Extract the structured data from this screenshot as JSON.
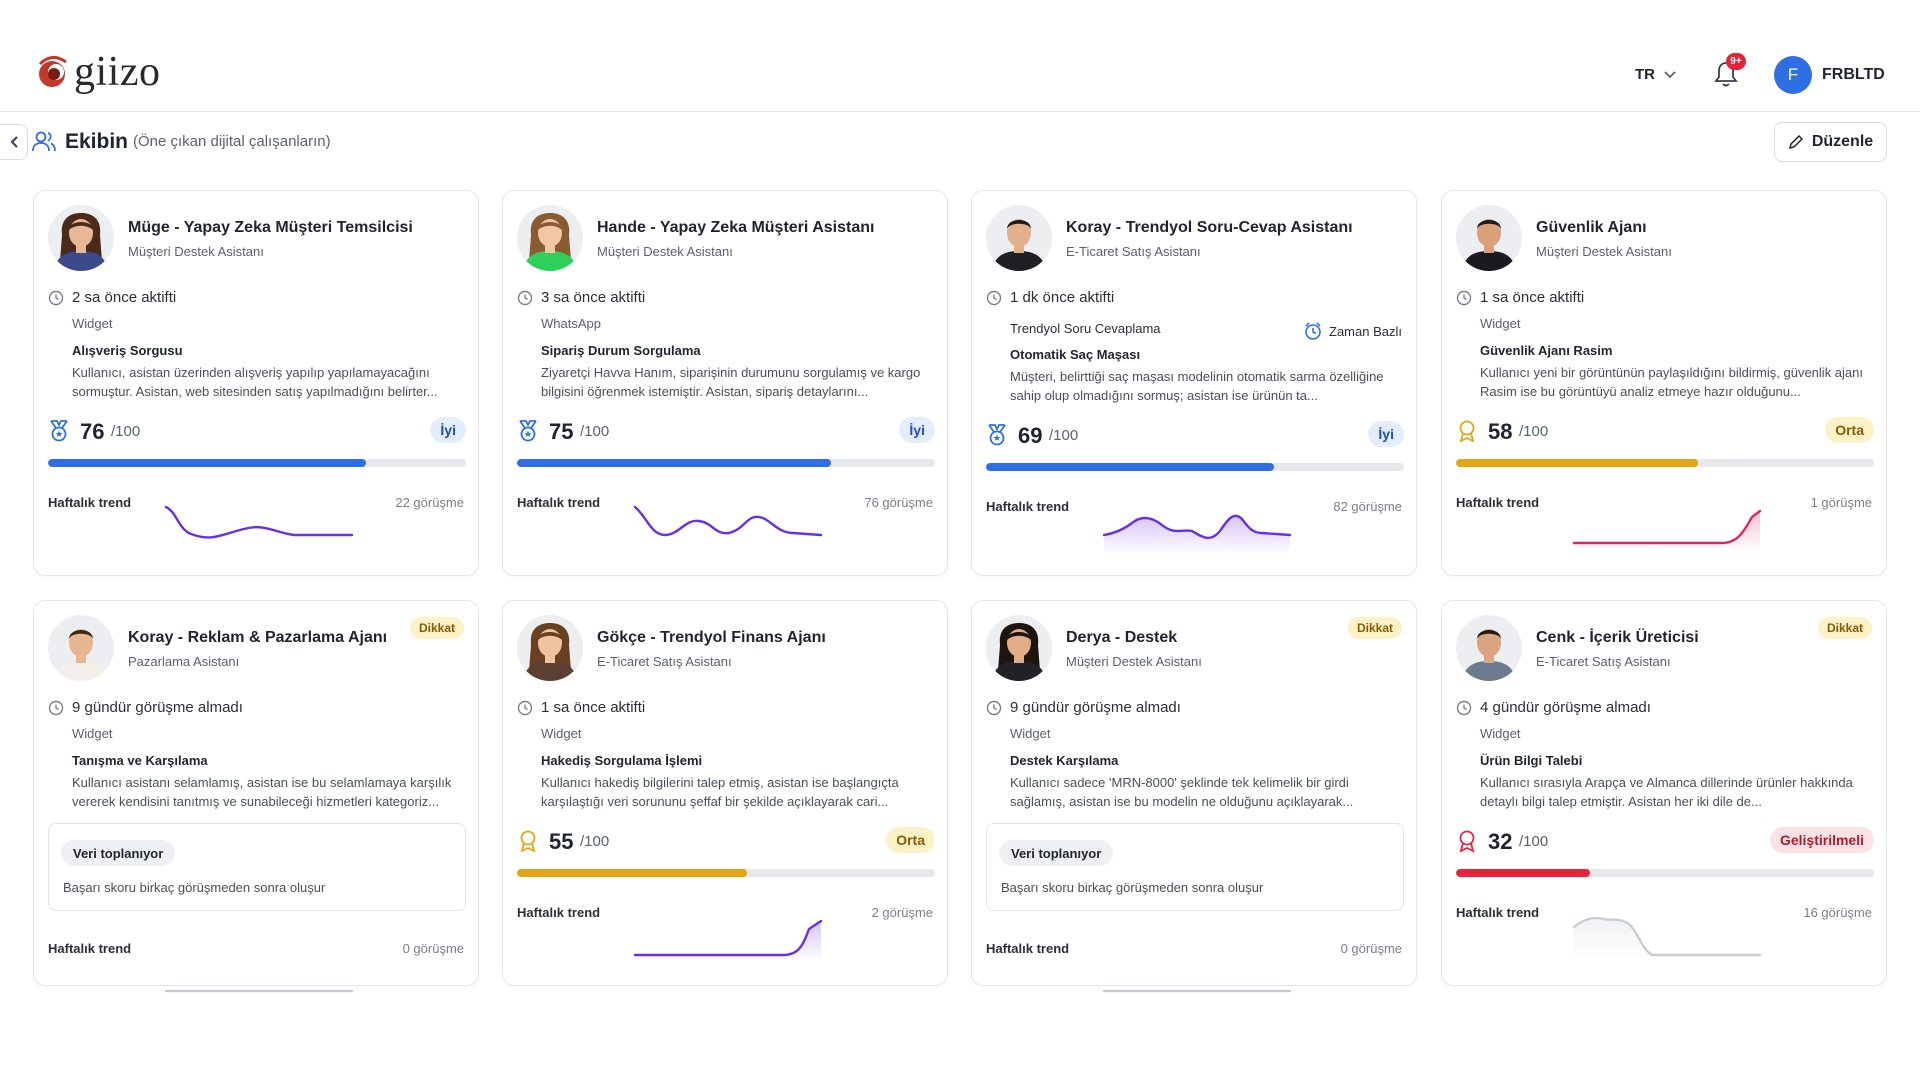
{
  "brand": {
    "logo_text": "giizo"
  },
  "header": {
    "language": "TR",
    "notifications_badge": "9+",
    "user_initial": "F",
    "user_name": "FRBLTD"
  },
  "team": {
    "title": "Ekibin",
    "subtitle": "(Öne çıkan dijital çalışanların)",
    "edit_label": "Düzenle"
  },
  "colors": {
    "blue": "#2f6fe4",
    "amber": "#e3a514",
    "red": "#e5243b",
    "purple": "#6a2ee6",
    "pink": "#e0245e",
    "gray": "#c9ccd2"
  },
  "cards": [
    {
      "name": "Müge - Yapay Zeka Müşteri Temsilcisi",
      "role": "Müşteri Destek Asistanı",
      "tag": "",
      "activity": "2 sa önce aktifti",
      "channel": "Widget",
      "time_tag": "",
      "topic": "Alışveriş Sorgusu",
      "summary": "Kullanıcı, asistan üzerinden alışveriş yapılıp yapılamayacağını sormuştur. Asistan, web sitesinden satış yapılmadığını belirter...",
      "score": "76",
      "score_max": "/100",
      "grade": "İyi",
      "grade_level": "good",
      "score_pct": 76,
      "collecting": false,
      "trend_label": "Haftalık trend",
      "trend_count": "22 görüşme",
      "trend_kind": "purple-wave"
    },
    {
      "name": "Hande - Yapay Zeka Müşteri Asistanı",
      "role": "Müşteri Destek Asistanı",
      "tag": "",
      "activity": "3 sa önce aktifti",
      "channel": "WhatsApp",
      "time_tag": "",
      "topic": "Sipariş Durum Sorgulama",
      "summary": "Ziyaretçi Havva Hanım, siparişinin durumunu sorgulamış ve kargo bilgisini öğrenmek istemiştir. Asistan, sipariş detaylarını...",
      "score": "75",
      "score_max": "/100",
      "grade": "İyi",
      "grade_level": "good",
      "score_pct": 75,
      "collecting": false,
      "trend_label": "Haftalık trend",
      "trend_count": "76 görüşme",
      "trend_kind": "purple-wave2"
    },
    {
      "name": "Koray - Trendyol Soru-Cevap Asistanı",
      "role": "E-Ticaret Satış Asistanı",
      "tag": "",
      "activity": "1 dk önce aktifti",
      "channel": "Trendyol Soru Cevaplama",
      "time_tag": "Zaman Bazlı",
      "topic": "Otomatik Saç Maşası",
      "summary": "Müşteri, belirttiği saç maşası modelinin otomatik sarma özelliğine sahip olup olmadığını sormuş; asistan ise ürünün ta...",
      "score": "69",
      "score_max": "/100",
      "grade": "İyi",
      "grade_level": "good",
      "score_pct": 69,
      "collecting": false,
      "trend_label": "Haftalık trend",
      "trend_count": "82 görüşme",
      "trend_kind": "purple-hills"
    },
    {
      "name": "Güvenlik Ajanı",
      "role": "Müşteri Destek Asistanı",
      "tag": "",
      "activity": "1 sa önce aktifti",
      "channel": "Widget",
      "time_tag": "",
      "topic": "Güvenlik Ajanı Rasim",
      "summary": "Kullanıcı yeni bir görüntünün paylaşıldığını bildirmiş, güvenlik ajanı Rasim ise bu görüntüyü analiz etmeye hazır olduğunu...",
      "score": "58",
      "score_max": "/100",
      "grade": "Orta",
      "grade_level": "mid",
      "score_pct": 58,
      "collecting": false,
      "trend_label": "Haftalık trend",
      "trend_count": "1 görüşme",
      "trend_kind": "pink-rise"
    },
    {
      "name": "Koray - Reklam & Pazarlama Ajanı",
      "role": "Pazarlama Asistanı",
      "tag": "Dikkat",
      "activity": "9 gündür görüşme almadı",
      "channel": "Widget",
      "time_tag": "",
      "topic": "Tanışma ve Karşılama",
      "summary": "Kullanıcı asistanı selamlamış, asistan ise bu selamlamaya karşılık vererek kendisini tanıtmış ve sunabileceği hizmetleri kategoriz...",
      "score": "",
      "score_max": "",
      "grade": "",
      "grade_level": "",
      "score_pct": 0,
      "collecting": true,
      "collect_pill": "Veri toplanıyor",
      "collect_text": "Başarı skoru birkaç görüşmeden sonra oluşur",
      "trend_label": "Haftalık trend",
      "trend_count": "0 görüşme",
      "trend_kind": "flat"
    },
    {
      "name": "Gökçe - Trendyol Finans Ajanı",
      "role": "E-Ticaret Satış Asistanı",
      "tag": "",
      "activity": "1 sa önce aktifti",
      "channel": "Widget",
      "time_tag": "",
      "topic": "Hakediş Sorgulama İşlemi",
      "summary": "Kullanıcı hakediş bilgilerini talep etmiş, asistan ise başlangıçta karşılaştığı veri sorununu şeffaf bir şekilde açıklayarak cari...",
      "score": "55",
      "score_max": "/100",
      "grade": "Orta",
      "grade_level": "mid",
      "score_pct": 55,
      "collecting": false,
      "trend_label": "Haftalık trend",
      "trend_count": "2 görüşme",
      "trend_kind": "purple-rise"
    },
    {
      "name": "Derya - Destek",
      "role": "Müşteri Destek Asistanı",
      "tag": "Dikkat",
      "activity": "9 gündür görüşme almadı",
      "channel": "Widget",
      "time_tag": "",
      "topic": "Destek Karşılama",
      "summary": "Kullanıcı sadece 'MRN-8000' şeklinde tek kelimelik bir girdi sağlamış, asistan ise bu modelin ne olduğunu açıklayarak...",
      "score": "",
      "score_max": "",
      "grade": "",
      "grade_level": "",
      "score_pct": 0,
      "collecting": true,
      "collect_pill": "Veri toplanıyor",
      "collect_text": "Başarı skoru birkaç görüşmeden sonra oluşur",
      "trend_label": "Haftalık trend",
      "trend_count": "0 görüşme",
      "trend_kind": "flat"
    },
    {
      "name": "Cenk - İçerik Üreticisi",
      "role": "E-Ticaret Satış Asistanı",
      "tag": "Dikkat",
      "activity": "4 gündür görüşme almadı",
      "channel": "Widget",
      "time_tag": "",
      "topic": "Ürün Bilgi Talebi",
      "summary": "Kullanıcı sırasıyla Arapça ve Almanca dillerinde ürünler hakkında detaylı bilgi talep etmiştir. Asistan her iki dile de...",
      "score": "32",
      "score_max": "/100",
      "grade": "Geliştirilmeli",
      "grade_level": "low",
      "score_pct": 32,
      "collecting": false,
      "trend_label": "Haftalık trend",
      "trend_count": "16 görüşme",
      "trend_kind": "gray-bump"
    }
  ]
}
